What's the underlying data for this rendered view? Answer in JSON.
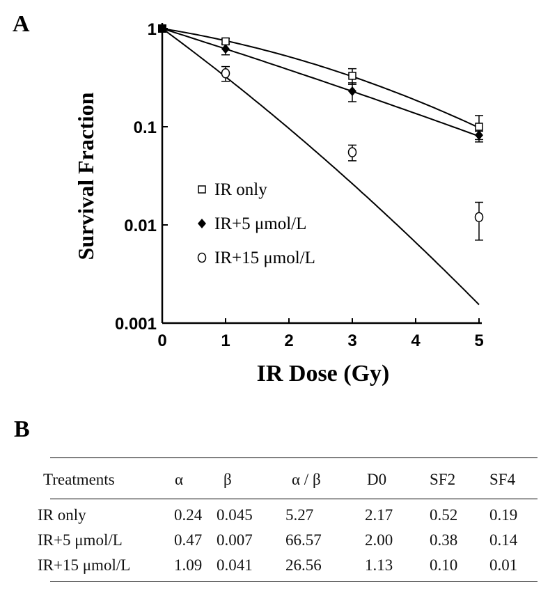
{
  "panel_a_label": "A",
  "panel_b_label": "B",
  "chart_data": {
    "type": "scatter",
    "title": "",
    "xlabel": "IR Dose (Gy)",
    "ylabel": "Survival Fraction",
    "xlim": [
      0,
      5
    ],
    "ylim": [
      0.001,
      1
    ],
    "y_scale": "log",
    "x_ticks": [
      "0",
      "1",
      "2",
      "3",
      "4",
      "5"
    ],
    "y_ticks": [
      "0.001",
      "0.01",
      "0.1",
      "1"
    ],
    "legend_placement": "left-center",
    "grid": false,
    "series": [
      {
        "name": "IR only",
        "marker": "open-square",
        "x": [
          0,
          1,
          3,
          5
        ],
        "y": [
          1.0,
          0.74,
          0.33,
          0.1
        ],
        "err": [
          0,
          0.05,
          0.06,
          0.03
        ],
        "fit_alpha": 0.24,
        "fit_beta": 0.045
      },
      {
        "name": "IR+5 μmol/L",
        "marker": "filled-diamond",
        "x": [
          0,
          1,
          3,
          5
        ],
        "y": [
          1.0,
          0.62,
          0.23,
          0.082
        ],
        "err": [
          0,
          0.08,
          0.05,
          0.008
        ],
        "fit_alpha": 0.47,
        "fit_beta": 0.007
      },
      {
        "name": "IR+15 μmol/L",
        "marker": "open-circle",
        "x": [
          0,
          1,
          3,
          5
        ],
        "y": [
          1.0,
          0.35,
          0.055,
          0.012
        ],
        "err": [
          0,
          0.06,
          0.01,
          0.005
        ],
        "fit_alpha": 1.09,
        "fit_beta": 0.041
      }
    ]
  },
  "table": {
    "headers": [
      "Treatments",
      "α",
      "β",
      "α / β",
      "D0",
      "SF2",
      "SF4"
    ],
    "rows": [
      [
        "IR  only",
        "0.24",
        "0.045",
        "5.27",
        "2.17",
        "0.52",
        "0.19"
      ],
      [
        "IR+5 μmol/L",
        "0.47",
        "0.007",
        "66.57",
        "2.00",
        "0.38",
        "0.14"
      ],
      [
        "IR+15 μmol/L",
        "1.09",
        "0.041",
        "26.56",
        "1.13",
        "0.10",
        "0.01"
      ]
    ]
  }
}
